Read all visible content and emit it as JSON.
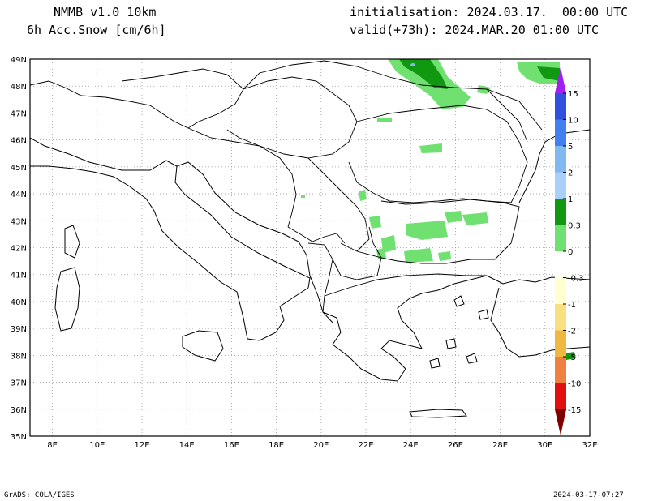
{
  "header": {
    "model": "NMMB_v1.0_10km",
    "variable": "6h Acc.Snow [cm/6h]",
    "init": "initialisation: 2024.03.17.  00:00 UTC",
    "valid": "valid(+73h): 2024.MAR.20 01:00 UTC"
  },
  "footer": {
    "credit": "GrADS: COLA/IGES",
    "timestamp": "2024-03-17-07:27"
  },
  "map": {
    "lon_range": [
      7,
      32
    ],
    "lat_range": [
      35,
      49
    ],
    "lon_ticks": [
      "8E",
      "10E",
      "12E",
      "14E",
      "16E",
      "18E",
      "20E",
      "22E",
      "24E",
      "26E",
      "28E",
      "30E",
      "32E"
    ],
    "lat_ticks": [
      "49N",
      "48N",
      "47N",
      "46N",
      "45N",
      "44N",
      "43N",
      "42N",
      "41N",
      "40N",
      "39N",
      "38N",
      "37N",
      "36N",
      "35N"
    ]
  },
  "colorbar": {
    "labels": [
      "15",
      "10",
      "5",
      "2",
      "1",
      "0.3",
      "0",
      "-0.3",
      "-1",
      "-2",
      "-5",
      "-10",
      "-15"
    ],
    "colors": [
      "#a020f0",
      "#3050e0",
      "#4080f0",
      "#80b8f0",
      "#a8d0f8",
      "#109810",
      "#70e070",
      "#ffffff",
      "#ffffd0",
      "#f8e080",
      "#f0b840",
      "#f08040",
      "#e01010",
      "#b00000",
      "#800000"
    ]
  },
  "colors": {
    "snow_light": "#70e070",
    "snow_medium": "#109810",
    "snow_high": "#80b8f0"
  }
}
